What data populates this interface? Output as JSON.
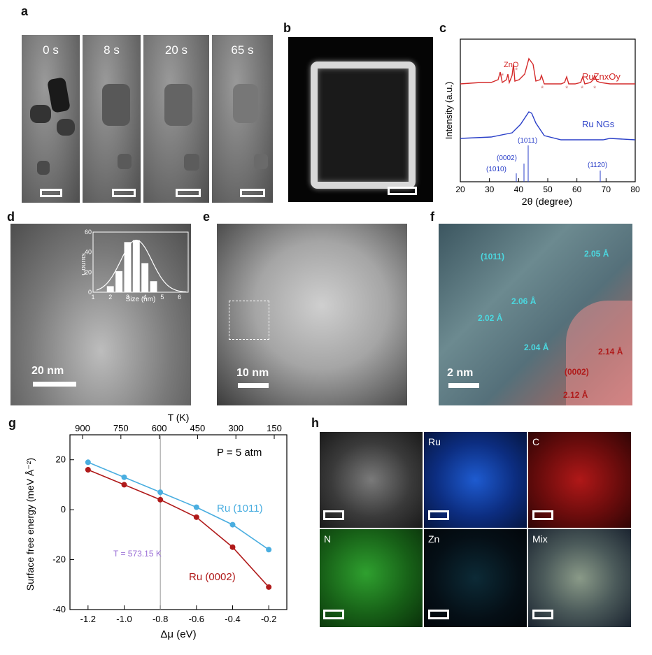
{
  "panels": {
    "a": "a",
    "b": "b",
    "c": "c",
    "d": "d",
    "e": "e",
    "f": "f",
    "g": "g",
    "h": "h"
  },
  "panel_a": {
    "times": [
      "0 s",
      "8 s",
      "20 s",
      "65 s"
    ]
  },
  "panel_c": {
    "ylabel": "Intensity (a.u.)",
    "xlabel": "2θ (degree)",
    "xticks": [
      "20",
      "30",
      "40",
      "50",
      "60",
      "70",
      "80"
    ],
    "zno_label": "ZnO",
    "star": "*",
    "series1": "RuZnxOy",
    "series2": "Ru NGs",
    "refs": [
      "(1010)",
      "(0002)",
      "(1011)",
      "(1120)"
    ]
  },
  "panel_d": {
    "scale": "20 nm",
    "inset_ylabel": "Counts",
    "inset_xlabel": "Size (nm)",
    "inset_yticks": [
      "0",
      "20",
      "40",
      "60"
    ],
    "inset_xticks": [
      "1",
      "2",
      "3",
      "4",
      "5",
      "6"
    ]
  },
  "panel_e": {
    "scale": "10 nm"
  },
  "panel_f": {
    "scale": "2 nm",
    "labels": [
      "(1011)",
      "2.05 Å",
      "2.06 Å",
      "2.02 Å",
      "2.04 Å",
      "2.14 Å",
      "(0002)",
      "2.12 Å"
    ]
  },
  "panel_g": {
    "top_axis": "T (K)",
    "top_ticks": [
      "900",
      "750",
      "600",
      "450",
      "300",
      "150"
    ],
    "ylabel": "Surface free energy (meV Å⁻²)",
    "xlabel": "Δμ (eV)",
    "xticks": [
      "-1.2",
      "-1.0",
      "-0.8",
      "-0.6",
      "-0.4",
      "-0.2"
    ],
    "yticks": [
      "20",
      "0",
      "-20",
      "-40"
    ],
    "pressure": "P = 5 atm",
    "vline_label": "T = 573.15 K",
    "series1": "Ru (1011)",
    "series2": "Ru (0002)"
  },
  "panel_h": {
    "maps": [
      "Ru",
      "C",
      "N",
      "Zn",
      "Mix"
    ]
  },
  "chart_data": [
    {
      "type": "line",
      "title": "",
      "xlabel": "2θ (degree)",
      "ylabel": "Intensity (a.u.)",
      "xlim": [
        20,
        80
      ],
      "series": [
        {
          "name": "RuZnxOy",
          "peaks_2theta": [
            31.8,
            34.4,
            36.3,
            43.8,
            47.5,
            56.6,
            62.9,
            68.0,
            69.1
          ]
        },
        {
          "name": "Ru NGs",
          "peaks_2theta": [
            43.5,
            69.5
          ]
        }
      ],
      "reference_lines": [
        {
          "label": "(1010)",
          "x": 38.4
        },
        {
          "label": "(0002)",
          "x": 42.2
        },
        {
          "label": "(1011)",
          "x": 44.0
        },
        {
          "label": "(1120)",
          "x": 69.4
        }
      ]
    },
    {
      "type": "line",
      "title": "",
      "xlabel": "Δμ (eV)",
      "ylabel": "Surface free energy (meV Å⁻²)",
      "xlim": [
        -1.3,
        -0.1
      ],
      "ylim": [
        -40,
        30
      ],
      "x": [
        -1.2,
        -1.0,
        -0.8,
        -0.6,
        -0.4,
        -0.2
      ],
      "series": [
        {
          "name": "Ru (1011)",
          "values": [
            19,
            13,
            7,
            1,
            -6,
            -16
          ],
          "color": "#4aaee0"
        },
        {
          "name": "Ru (0002)",
          "values": [
            16,
            10,
            4,
            -3,
            -15,
            -31
          ],
          "color": "#b01a1a"
        }
      ]
    },
    {
      "type": "bar",
      "xlabel": "Size (nm)",
      "ylabel": "Counts",
      "categories": [
        "1.5",
        "2",
        "2.5",
        "3",
        "3.5",
        "4",
        "4.5",
        "5",
        "5.5"
      ],
      "values": [
        0,
        6,
        21,
        50,
        52,
        29,
        11,
        0,
        0
      ],
      "ylim": [
        0,
        60
      ]
    }
  ]
}
